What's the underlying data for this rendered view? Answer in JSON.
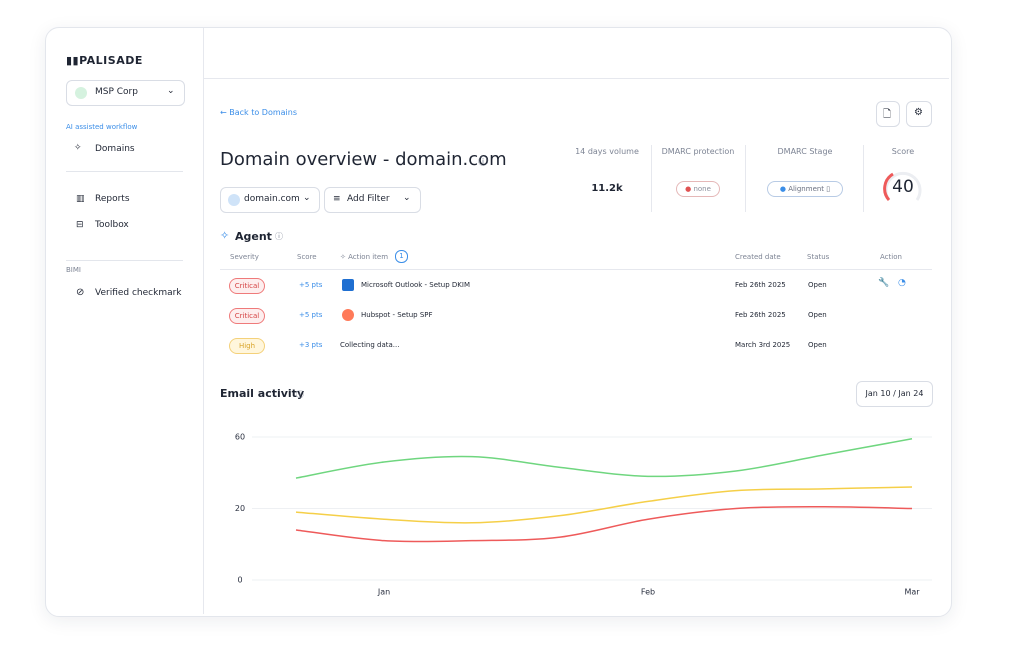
{
  "sidebar": {
    "logo": "PALISADE",
    "org": "MSP Corp",
    "section_1": "AI assisted workflow",
    "nav_1": [
      "Domains"
    ],
    "nav_2": [
      "Reports",
      "Toolbox"
    ],
    "section_2": "BIMI",
    "nav_3": [
      "Verified checkmark"
    ]
  },
  "header": {
    "back": "← Back to Domains",
    "title": "Domain overview - domain.com",
    "domain_select": "domain.com",
    "filter": "Add Filter"
  },
  "stats": [
    {
      "label": "14 days volume",
      "value": "11.2k"
    },
    {
      "label": "DMARC protection",
      "value": "none"
    },
    {
      "label": "DMARC Stage",
      "value": "Alignment"
    },
    {
      "label": "Score",
      "value": 40
    }
  ],
  "agent": {
    "title": "Agent",
    "columns": [
      "Severity",
      "Score",
      "Action item",
      "Created date",
      "Status",
      "Action"
    ],
    "action_count": 1,
    "rows": [
      {
        "severity": "Critical",
        "score": "+5 pts",
        "item": "Microsoft Outlook - Setup DKIM",
        "created": "Feb 26th 2025",
        "status": "Open"
      },
      {
        "severity": "Critical",
        "score": "+5 pts",
        "item": "Hubspot - Setup SPF",
        "created": "Feb 26th 2025",
        "status": "Open"
      },
      {
        "severity": "High",
        "score": "+3 pts",
        "item": "Collecting data...",
        "created": "March 3rd 2025",
        "status": "Open"
      }
    ]
  },
  "range": "Jan 10 / Jan 24",
  "chart_data": {
    "type": "line",
    "title": "Email activity",
    "categories": [
      null,
      "Jan",
      null,
      null,
      "Feb",
      null,
      null,
      "Mar"
    ],
    "series": [
      {
        "color": "#6fd67f",
        "values": [
          37,
          46,
          49,
          43,
          38,
          41,
          50,
          59
        ]
      },
      {
        "color": "#f5cf48",
        "values": [
          19,
          17,
          16,
          18,
          24,
          30,
          31,
          32
        ]
      },
      {
        "color": "#ee5a5a",
        "values": [
          14,
          11,
          11,
          12,
          17,
          20,
          21,
          20
        ]
      }
    ],
    "ylim": [
      0,
      60
    ],
    "yticks": [
      0,
      20,
      60
    ],
    "grid": true
  }
}
